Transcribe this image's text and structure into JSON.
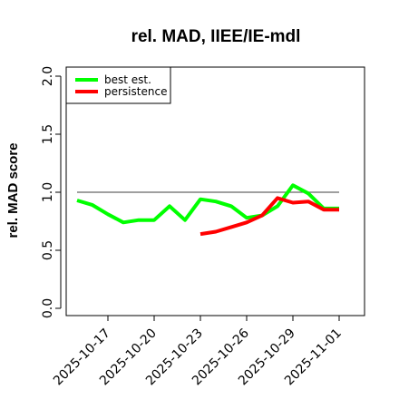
{
  "chart_data": {
    "type": "line",
    "title": "rel. MAD, IIEE/IE-mdl",
    "ylabel": "rel. MAD score",
    "xlabel": "",
    "ylim": [
      0,
      2
    ],
    "yticks": [
      0.0,
      0.5,
      1.0,
      1.5,
      2.0
    ],
    "ytick_labels": [
      "0.0",
      "0.5",
      "1.0",
      "1.5",
      "2.0"
    ],
    "xticks": [
      "2025-10-17",
      "2025-10-20",
      "2025-10-23",
      "2025-10-26",
      "2025-10-29",
      "2025-11-01"
    ],
    "xlim": [
      "2025-10-16",
      "2025-11-02"
    ],
    "reference_line": 1.0,
    "legend_position": "top-left",
    "series": [
      {
        "name": "best est.",
        "color": "#00ff00",
        "x": [
          "2025-10-15",
          "2025-10-16",
          "2025-10-17",
          "2025-10-18",
          "2025-10-19",
          "2025-10-20",
          "2025-10-21",
          "2025-10-22",
          "2025-10-23",
          "2025-10-24",
          "2025-10-25",
          "2025-10-26",
          "2025-10-27",
          "2025-10-28",
          "2025-10-29",
          "2025-10-30",
          "2025-10-31",
          "2025-11-01"
        ],
        "y": [
          0.93,
          0.89,
          0.81,
          0.74,
          0.76,
          0.76,
          0.88,
          0.76,
          0.94,
          0.92,
          0.88,
          0.78,
          0.8,
          0.88,
          1.06,
          0.99,
          0.86,
          0.86
        ]
      },
      {
        "name": "persistence",
        "color": "#ff0000",
        "x": [
          "2025-10-23",
          "2025-10-24",
          "2025-10-25",
          "2025-10-26",
          "2025-10-27",
          "2025-10-28",
          "2025-10-29",
          "2025-10-30",
          "2025-10-31",
          "2025-11-01"
        ],
        "y": [
          0.64,
          0.66,
          0.7,
          0.74,
          0.8,
          0.95,
          0.91,
          0.92,
          0.85,
          0.85
        ]
      }
    ]
  }
}
